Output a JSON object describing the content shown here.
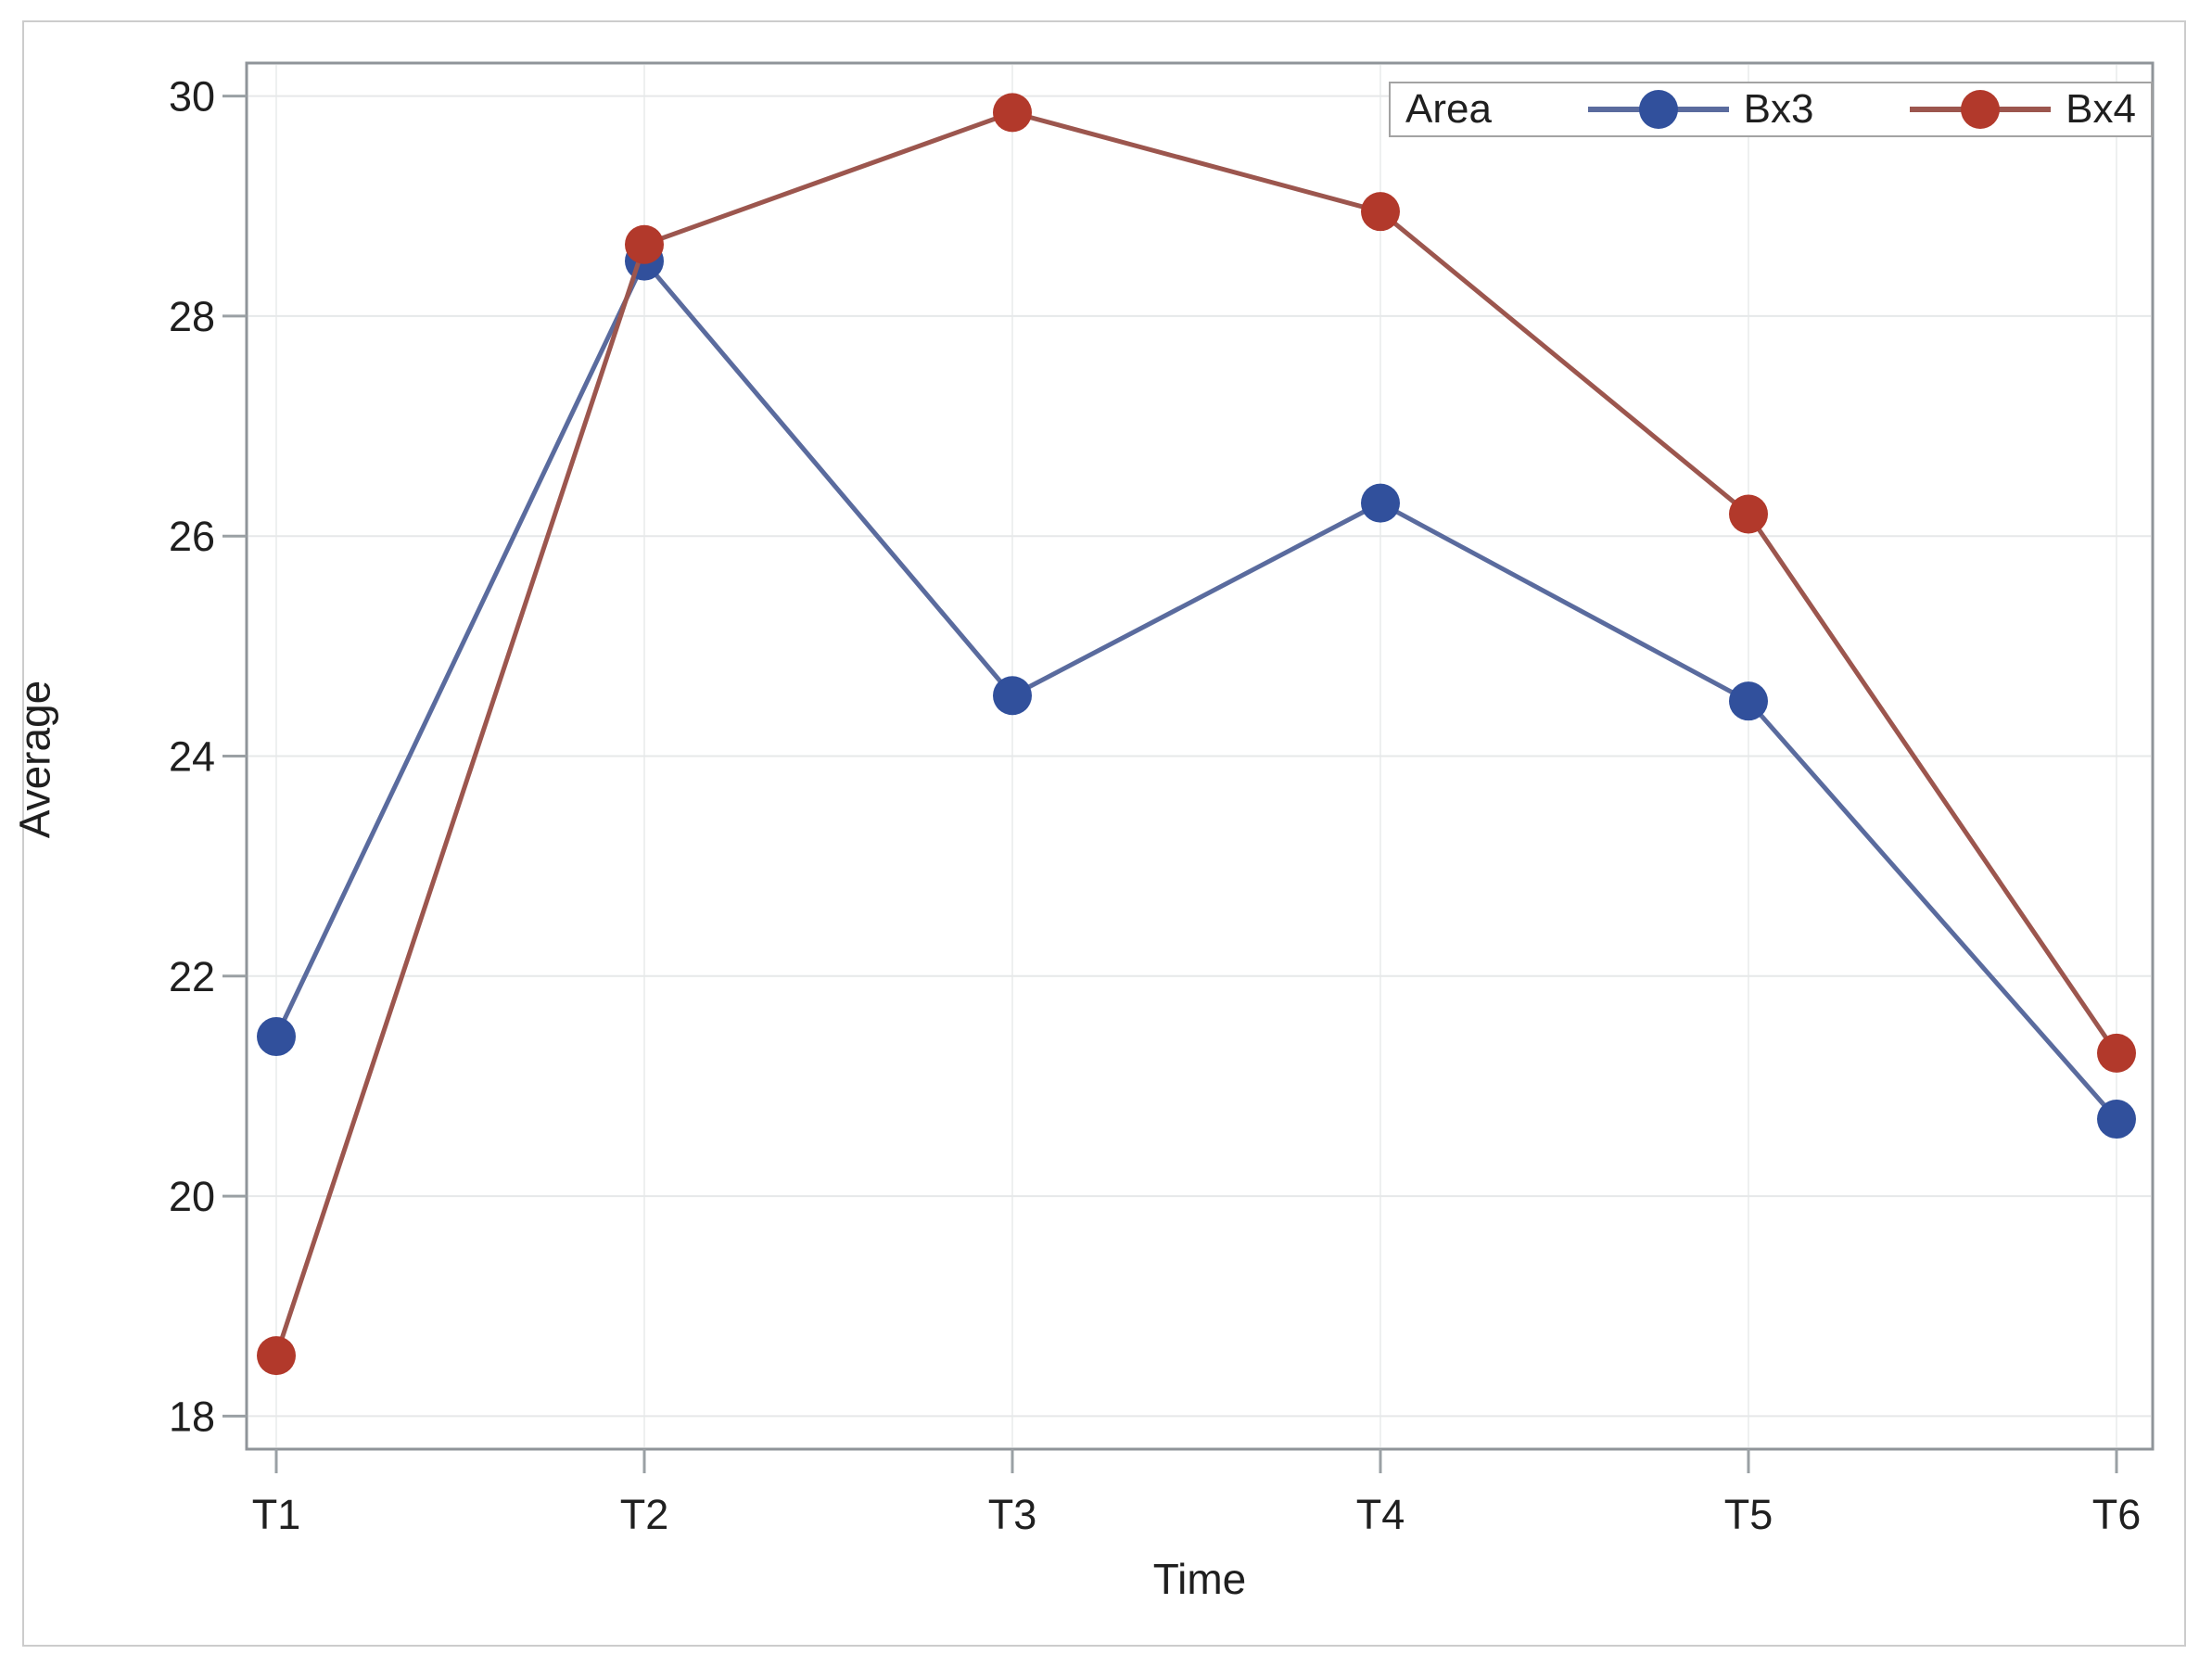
{
  "chart_data": {
    "type": "line",
    "title": "",
    "xlabel": "Time",
    "ylabel": "Average",
    "categories": [
      "T1",
      "T2",
      "T3",
      "T4",
      "T5",
      "T6"
    ],
    "yticks": [
      18,
      20,
      22,
      24,
      26,
      28,
      30
    ],
    "ylim": [
      17.7,
      30.3
    ],
    "grid": true,
    "legend": {
      "title": "Area",
      "position": "top-right",
      "border": true
    },
    "series": [
      {
        "name": "Bx3",
        "line_color": "#5a6b9e",
        "marker_color": "#31509c",
        "marker": "circle",
        "values": [
          21.45,
          28.5,
          24.55,
          26.3,
          24.5,
          20.7
        ]
      },
      {
        "name": "Bx4",
        "line_color": "#9c564e",
        "marker_color": "#b2392b",
        "marker": "circle",
        "values": [
          18.55,
          28.65,
          29.85,
          28.95,
          26.2,
          21.3
        ]
      }
    ]
  }
}
